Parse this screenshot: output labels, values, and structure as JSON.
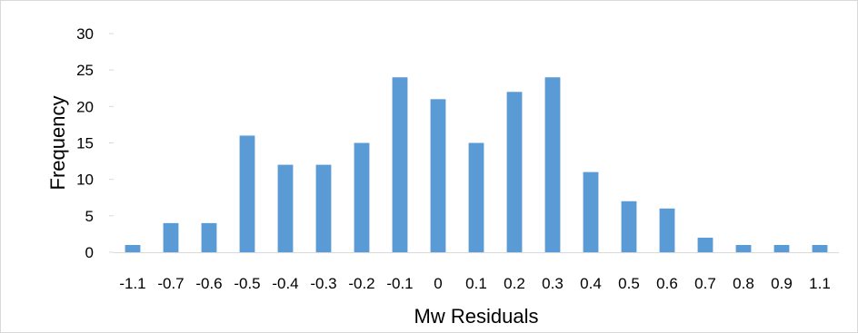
{
  "chart_data": {
    "type": "bar",
    "xlabel": "Mw Residuals",
    "ylabel": "Frequency",
    "ylim": [
      0,
      30
    ],
    "yticks": [
      0,
      5,
      10,
      15,
      20,
      25,
      30
    ],
    "categories": [
      "-1.1",
      "-0.7",
      "-0.6",
      "-0.5",
      "-0.4",
      "-0.3",
      "-0.2",
      "-0.1",
      "0",
      "0.1",
      "0.2",
      "0.3",
      "0.4",
      "0.5",
      "0.6",
      "0.7",
      "0.8",
      "0.9",
      "1.1"
    ],
    "values": [
      1,
      4,
      4,
      16,
      12,
      12,
      15,
      24,
      21,
      15,
      22,
      24,
      11,
      7,
      6,
      2,
      1,
      1,
      1
    ],
    "bar_color": "#5b9bd5",
    "grid": false,
    "legend": "none"
  }
}
